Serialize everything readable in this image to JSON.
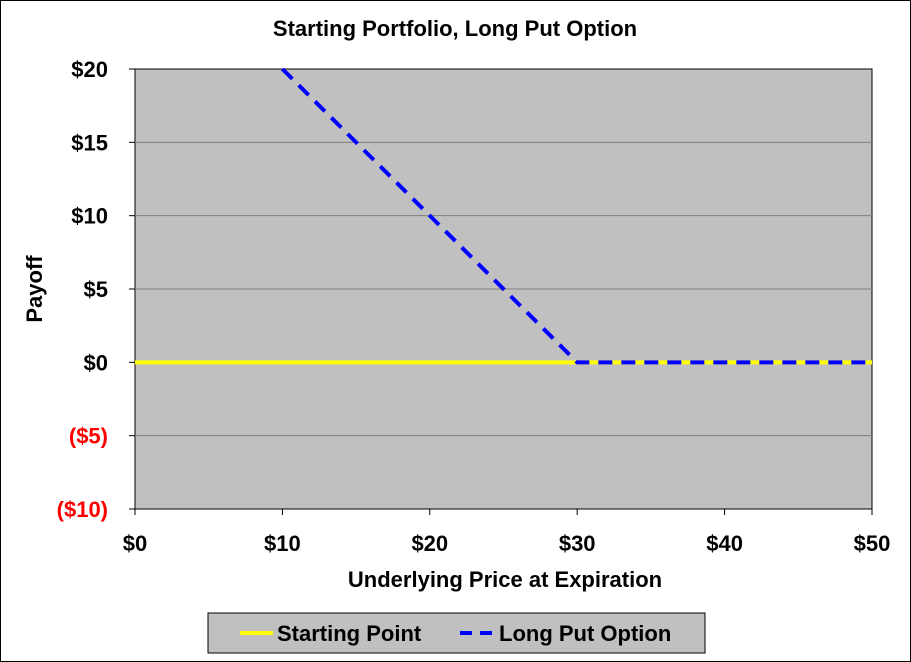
{
  "chart_data": {
    "type": "line",
    "title": "Starting Portfolio, Long Put Option",
    "xlabel": "Underlying Price at Expiration",
    "ylabel": "Payoff",
    "xlim": [
      0,
      50
    ],
    "ylim": [
      -10,
      20
    ],
    "x_ticks": [
      0,
      10,
      20,
      30,
      40,
      50
    ],
    "x_tick_labels": [
      "$0",
      "$10",
      "$20",
      "$30",
      "$40",
      "$50"
    ],
    "y_ticks": [
      20,
      15,
      10,
      5,
      0,
      -5,
      -10
    ],
    "y_tick_labels": [
      "$20",
      "$15",
      "$10",
      "$5",
      "$0",
      "($5)",
      "($10)"
    ],
    "negative_tick_color": "#ff0000",
    "plot_background": "#c0c0c0",
    "grid": true,
    "legend_position": "bottom",
    "series": [
      {
        "name": "Starting Point",
        "color": "#ffff00",
        "style": "solid",
        "x": [
          0,
          50
        ],
        "y": [
          0,
          0
        ]
      },
      {
        "name": "Long Put Option",
        "color": "#0000ff",
        "style": "dashed",
        "x": [
          10,
          30,
          50
        ],
        "y": [
          20,
          0,
          0
        ]
      }
    ]
  }
}
